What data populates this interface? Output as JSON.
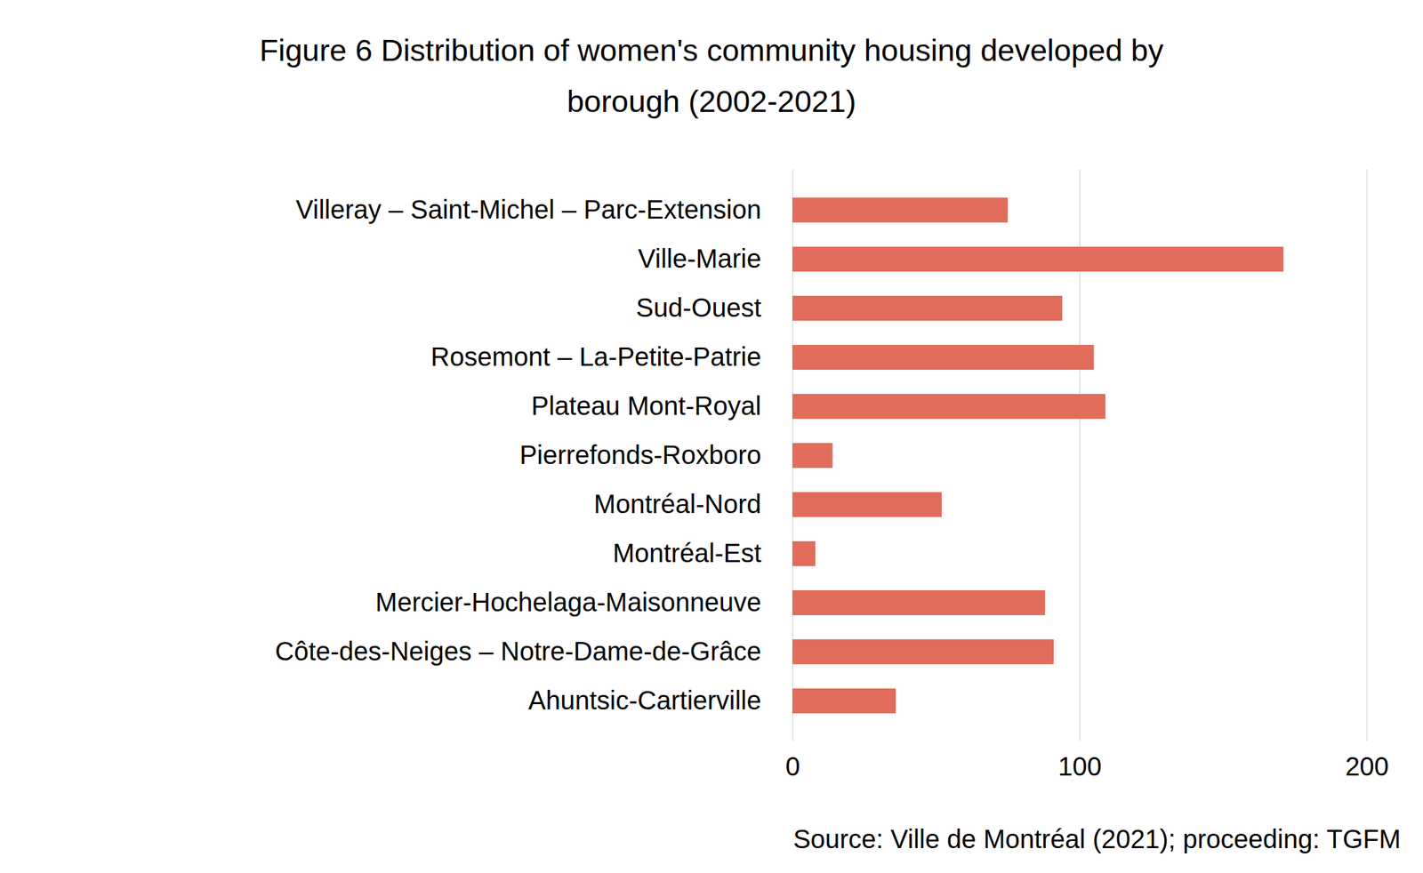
{
  "chart_data": {
    "type": "bar",
    "orientation": "horizontal",
    "title": "Figure 6 Distribution of women's community housing developed by borough (2002-2021)",
    "source": "Source: Ville de Montréal (2021); proceeding: TGFM",
    "categories": [
      "Villeray – Saint-Michel – Parc-Extension",
      "Ville-Marie",
      "Sud-Ouest",
      "Rosemont – La-Petite-Patrie",
      "Plateau Mont-Royal",
      "Pierrefonds-Roxboro",
      "Montréal-Nord",
      "Montréal-Est",
      "Mercier-Hochelaga-Maisonneuve",
      "Côte-des-Neiges – Notre-Dame-de-Grâce",
      "Ahuntsic-Cartierville"
    ],
    "values": [
      75,
      171,
      94,
      105,
      109,
      14,
      52,
      8,
      88,
      91,
      36
    ],
    "color": "#e26c5c",
    "xlim": [
      0,
      200
    ],
    "xticks": [
      0,
      100,
      200
    ],
    "grid": true
  }
}
